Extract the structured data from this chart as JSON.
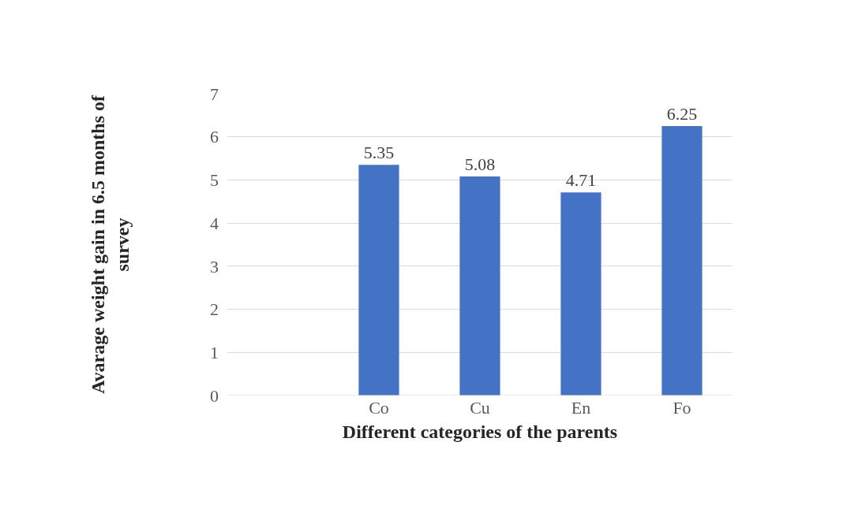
{
  "chart_data": {
    "type": "bar",
    "xlabel": "Different categories of the parents",
    "ylabel": "Avarage weight gain in 6.5 months of\nsurvey",
    "categories": [
      null,
      "Co",
      "Cu",
      "En",
      "Fo"
    ],
    "values": [
      null,
      5.35,
      5.08,
      4.71,
      6.25
    ],
    "color": "#4472c4",
    "ylim": [
      0,
      7
    ],
    "yticks": [
      0,
      1,
      2,
      3,
      4,
      5,
      6,
      7
    ],
    "grid": "y",
    "data_labels": true
  }
}
